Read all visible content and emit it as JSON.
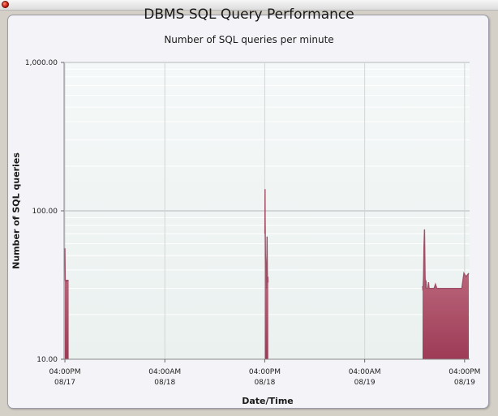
{
  "window": {
    "close_icon": "close-icon"
  },
  "chart_data": {
    "type": "area",
    "title": "DBMS SQL Query Performance",
    "subtitle": "Number of SQL queries per minute",
    "xlabel": "Date/Time",
    "ylabel": "Number of SQL queries",
    "yscale": "log",
    "ylim": [
      10,
      1000
    ],
    "yticks": [
      {
        "value": 10,
        "label": "10.00"
      },
      {
        "value": 100,
        "label": "100.00"
      },
      {
        "value": 1000,
        "label": "1,000.00"
      }
    ],
    "xlim": [
      "2010-08-17 15:54",
      "2010-08-19 16:36"
    ],
    "xticks": [
      {
        "value": "2010-08-17 16:00",
        "time": "04:00PM",
        "date": "08/17"
      },
      {
        "value": "2010-08-18 04:00",
        "time": "04:00AM",
        "date": "08/18"
      },
      {
        "value": "2010-08-18 16:00",
        "time": "04:00PM",
        "date": "08/18"
      },
      {
        "value": "2010-08-19 04:00",
        "time": "04:00AM",
        "date": "08/19"
      },
      {
        "value": "2010-08-19 16:00",
        "time": "04:00PM",
        "date": "08/19"
      }
    ],
    "grid": true,
    "fill_color_top": "#d4909e",
    "fill_color_bottom": "#9e3b56",
    "line_color": "#a04f66",
    "series": [
      {
        "segments": [
          [
            [
              "2010-08-17 16:00",
              10
            ],
            [
              "2010-08-17 16:00",
              56
            ],
            [
              "2010-08-17 16:01",
              44
            ],
            [
              "2010-08-17 16:02",
              34
            ],
            [
              "2010-08-17 16:08",
              34
            ],
            [
              "2010-08-17 16:11",
              33
            ],
            [
              "2010-08-17 16:15",
              34
            ],
            [
              "2010-08-17 16:20",
              34
            ],
            [
              "2010-08-17 16:26",
              34
            ],
            [
              "2010-08-17 16:27",
              34
            ],
            [
              "2010-08-17 16:27",
              10
            ]
          ],
          [
            [
              "2010-08-18 16:01",
              10
            ],
            [
              "2010-08-18 16:01",
              70
            ],
            [
              "2010-08-18 16:02",
              140
            ],
            [
              "2010-08-18 16:03",
              90
            ],
            [
              "2010-08-18 16:05",
              50
            ],
            [
              "2010-08-18 16:07",
              45
            ],
            [
              "2010-08-18 16:10",
              35
            ],
            [
              "2010-08-18 16:12",
              31
            ],
            [
              "2010-08-18 16:14",
              30
            ],
            [
              "2010-08-18 16:15",
              45
            ],
            [
              "2010-08-18 16:17",
              67
            ],
            [
              "2010-08-18 16:19",
              35
            ],
            [
              "2010-08-18 16:22",
              36
            ],
            [
              "2010-08-18 16:24",
              33
            ],
            [
              "2010-08-18 16:25",
              33
            ],
            [
              "2010-08-18 16:25",
              10
            ]
          ],
          [
            [
              "2010-08-19 10:57",
              10
            ],
            [
              "2010-08-19 10:57",
              31
            ],
            [
              "2010-08-19 11:00",
              29
            ],
            [
              "2010-08-19 11:04",
              36
            ],
            [
              "2010-08-19 11:07",
              56
            ],
            [
              "2010-08-19 11:11",
              75
            ],
            [
              "2010-08-19 11:15",
              36
            ],
            [
              "2010-08-19 11:18",
              30
            ],
            [
              "2010-08-19 11:21",
              34
            ],
            [
              "2010-08-19 11:25",
              30
            ],
            [
              "2010-08-19 11:30",
              30
            ],
            [
              "2010-08-19 11:35",
              30
            ],
            [
              "2010-08-19 11:40",
              33
            ],
            [
              "2010-08-19 11:44",
              30
            ],
            [
              "2010-08-19 11:50",
              30
            ],
            [
              "2010-08-19 12:00",
              30
            ],
            [
              "2010-08-19 12:10",
              30
            ],
            [
              "2010-08-19 12:20",
              30
            ],
            [
              "2010-08-19 12:30",
              32
            ],
            [
              "2010-08-19 12:40",
              30
            ],
            [
              "2010-08-19 13:00",
              30
            ],
            [
              "2010-08-19 14:00",
              30
            ],
            [
              "2010-08-19 15:00",
              30
            ],
            [
              "2010-08-19 15:40",
              30
            ],
            [
              "2010-08-19 15:55",
              38
            ],
            [
              "2010-08-19 16:10",
              36
            ],
            [
              "2010-08-19 16:30",
              38
            ],
            [
              "2010-08-19 16:30",
              10
            ]
          ]
        ]
      }
    ]
  }
}
